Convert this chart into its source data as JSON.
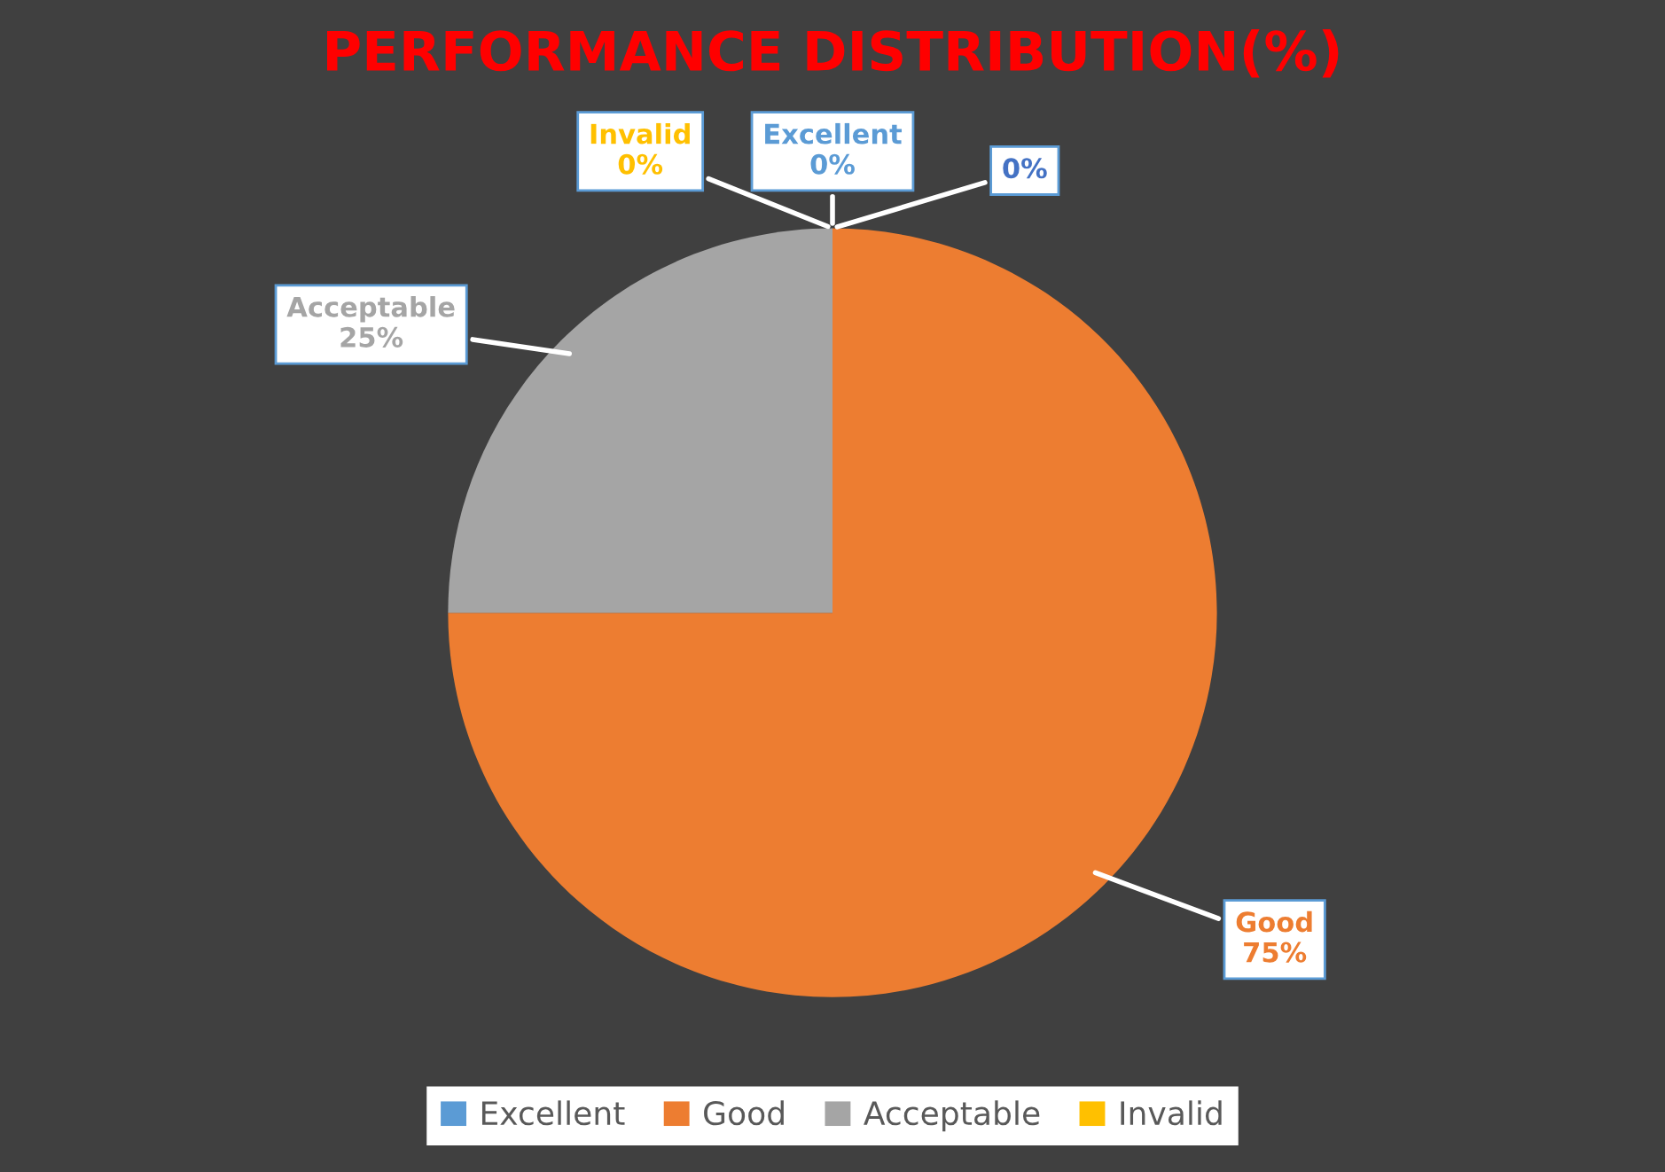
{
  "chart_data": {
    "type": "pie",
    "title": "PERFORMANCE DISTRIBUTION(%)",
    "categories": [
      "Excellent",
      "Good",
      "Acceptable",
      "Invalid",
      null
    ],
    "values": [
      0,
      75,
      25,
      0,
      0
    ],
    "colors": [
      "#5b9bd5",
      "#ed7d31",
      "#a5a5a5",
      "#ffc000",
      "#4472c4"
    ],
    "value_labels": [
      "0%",
      "75%",
      "25%",
      "0%",
      "0%"
    ],
    "legend": "bottom"
  }
}
